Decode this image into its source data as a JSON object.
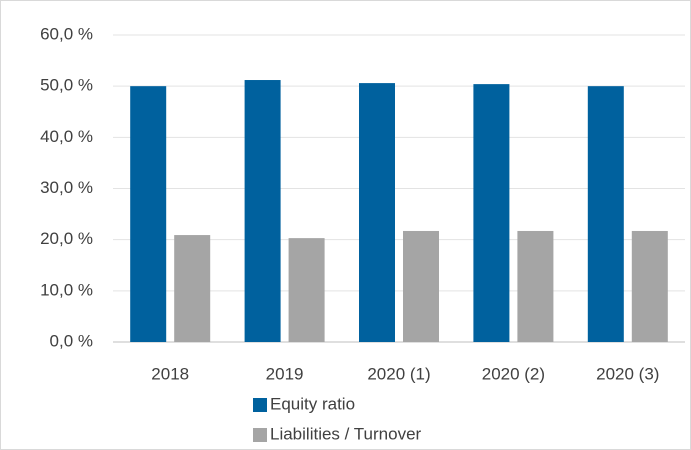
{
  "chart_data": {
    "type": "bar",
    "categories": [
      "2018",
      "2019",
      "2020 (1)",
      "2020 (2)",
      "2020 (3)"
    ],
    "series": [
      {
        "name": "Equity ratio",
        "color": "#00619e",
        "values": [
          50.0,
          51.2,
          50.6,
          50.4,
          50.0
        ]
      },
      {
        "name": "Liabilities / Turnover",
        "color": "#a5a5a5",
        "values": [
          20.9,
          20.3,
          21.7,
          21.7,
          21.7
        ]
      }
    ],
    "ylim": [
      0,
      60
    ],
    "yticks": [
      {
        "value": 0,
        "label": "0,0 %"
      },
      {
        "value": 10,
        "label": "10,0 %"
      },
      {
        "value": 20,
        "label": "20,0 %"
      },
      {
        "value": 30,
        "label": "30,0 %"
      },
      {
        "value": 40,
        "label": "40,0 %"
      },
      {
        "value": 50,
        "label": "50,0 %"
      },
      {
        "value": 60,
        "label": "60,0 %"
      }
    ],
    "grid": true,
    "legend": "bottom"
  }
}
